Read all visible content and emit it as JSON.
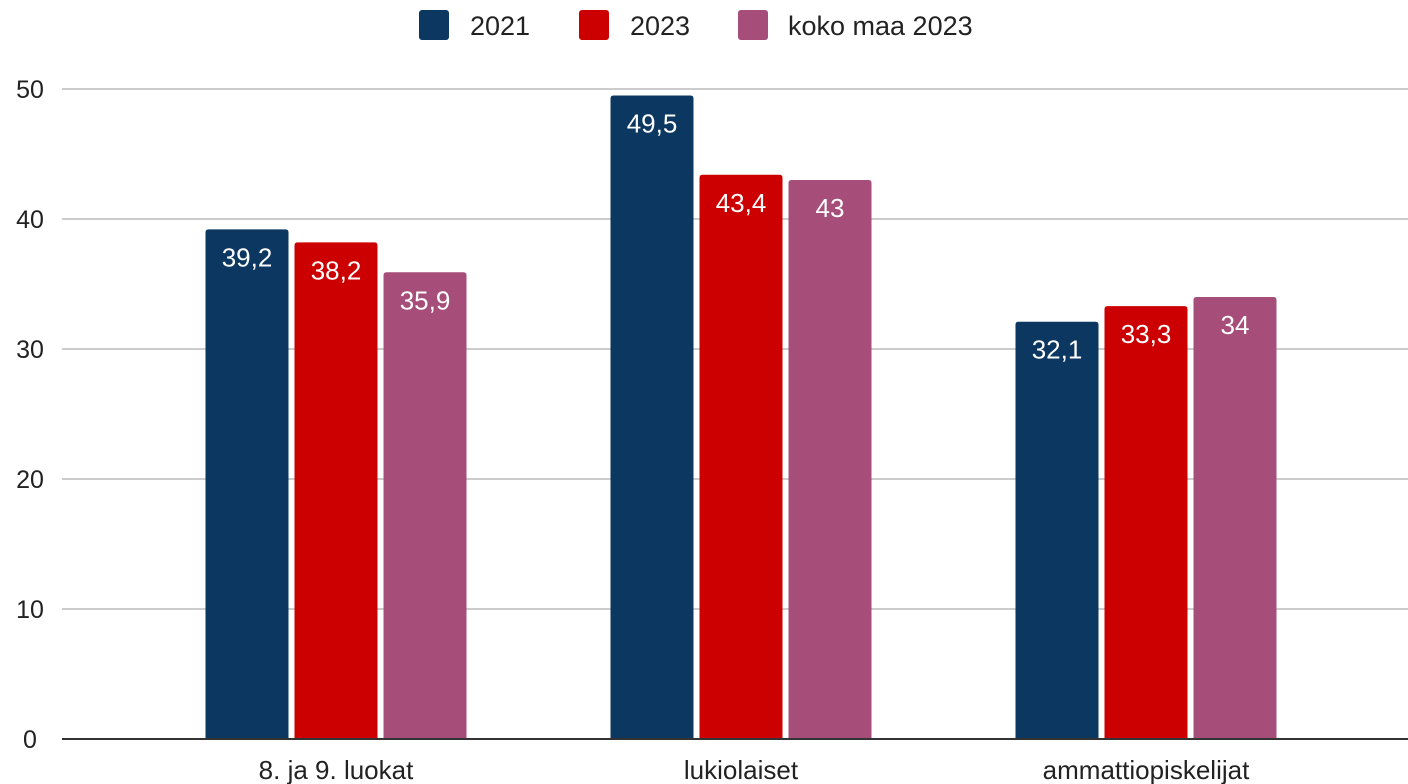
{
  "chart_data": {
    "type": "bar",
    "categories": [
      "8. ja 9. luokat",
      "lukiolaiset",
      "ammattiopiskelijat"
    ],
    "series": [
      {
        "name": "2021",
        "values": [
          39.2,
          49.5,
          32.1
        ],
        "labels": [
          "39,2",
          "49,5",
          "32,1"
        ],
        "color": "#0b3761"
      },
      {
        "name": "2023",
        "values": [
          38.2,
          43.4,
          33.3
        ],
        "labels": [
          "38,2",
          "43,4",
          "33,3"
        ],
        "color": "#cc0000"
      },
      {
        "name": "koko maa 2023",
        "values": [
          35.9,
          43,
          34
        ],
        "labels": [
          "35,9",
          "43",
          "34"
        ],
        "color": "#a64d79"
      }
    ],
    "y_ticks": [
      "0",
      "10",
      "20",
      "30",
      "40",
      "50"
    ],
    "ylim": [
      0,
      50
    ],
    "grid": true,
    "legend_position": "top-center",
    "colors": {
      "gridline": "#cccccc",
      "axis": "#333333",
      "text": "#222222",
      "label": "#ffffff"
    }
  }
}
